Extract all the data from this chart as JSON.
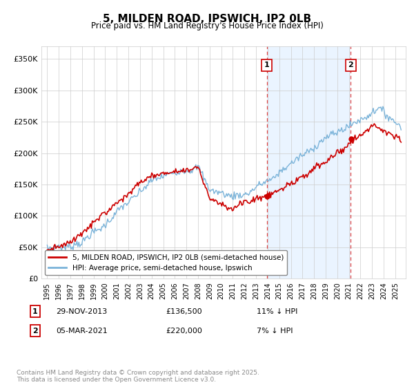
{
  "title": "5, MILDEN ROAD, IPSWICH, IP2 0LB",
  "subtitle": "Price paid vs. HM Land Registry's House Price Index (HPI)",
  "ylim": [
    0,
    370000
  ],
  "yticks": [
    0,
    50000,
    100000,
    150000,
    200000,
    250000,
    300000,
    350000
  ],
  "ytick_labels": [
    "£0",
    "£50K",
    "£100K",
    "£150K",
    "£200K",
    "£250K",
    "£300K",
    "£350K"
  ],
  "transaction1_date": 2013.92,
  "transaction1_price": 136500,
  "transaction2_date": 2021.17,
  "transaction2_price": 220000,
  "legend_line1": "5, MILDEN ROAD, IPSWICH, IP2 0LB (semi-detached house)",
  "legend_line2": "HPI: Average price, semi-detached house, Ipswich",
  "ann1_date": "29-NOV-2013",
  "ann1_price": "£136,500",
  "ann1_hpi": "11% ↓ HPI",
  "ann2_date": "05-MAR-2021",
  "ann2_price": "£220,000",
  "ann2_hpi": "7% ↓ HPI",
  "footnote": "Contains HM Land Registry data © Crown copyright and database right 2025.\nThis data is licensed under the Open Government Licence v3.0.",
  "line_color_red": "#cc0000",
  "line_color_blue": "#7ab3d9",
  "shaded_region_color": "#ddeeff",
  "marker_box_color": "#cc0000",
  "vline_color": "#dd4444",
  "background_color": "#ffffff",
  "grid_color": "#cccccc",
  "xmin": 1994.5,
  "xmax": 2025.9
}
